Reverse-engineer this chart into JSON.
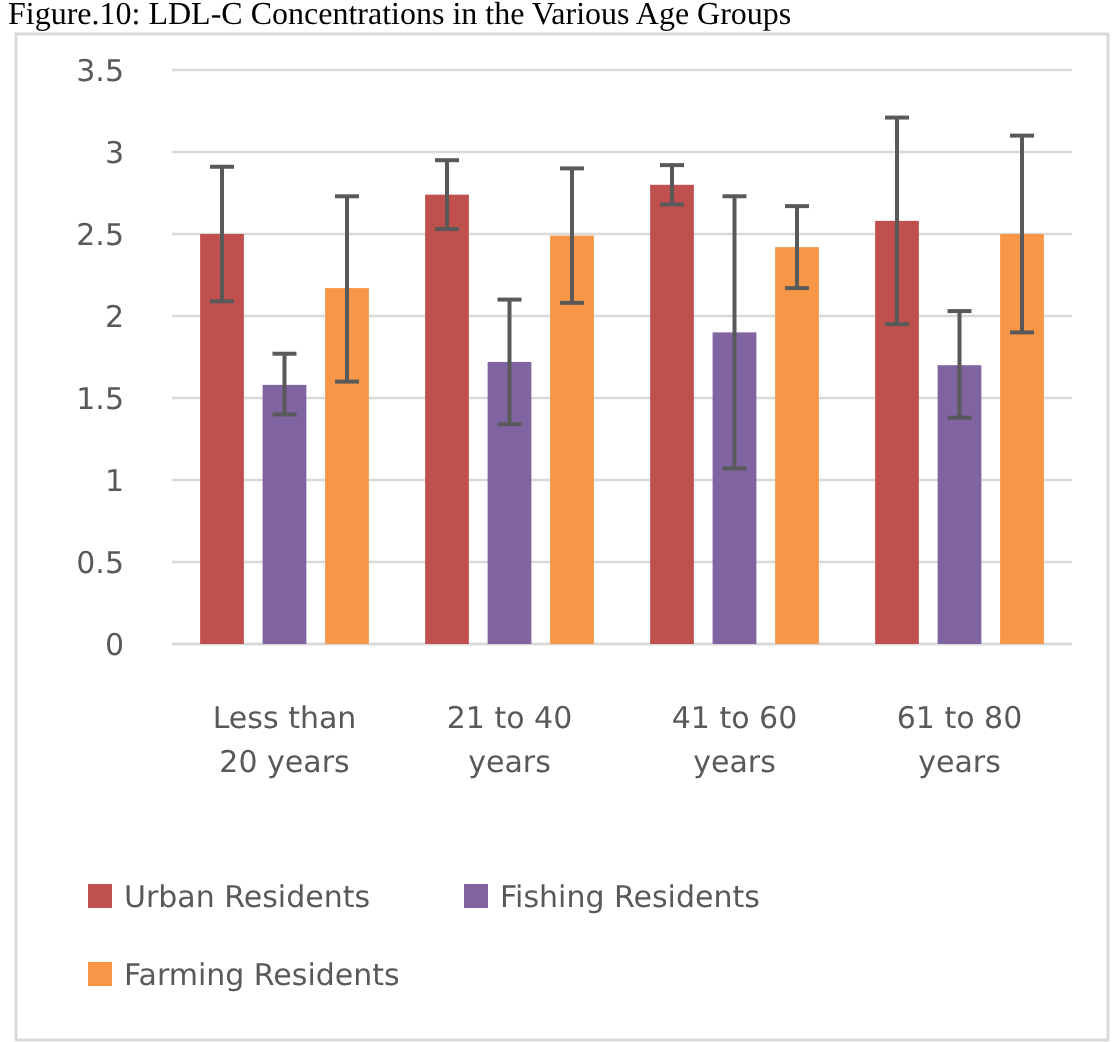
{
  "chart_data": {
    "type": "bar",
    "title": "Figure.10: LDL-C Concentrations in the Various Age Groups",
    "categories": [
      "Less than 20 years",
      "21 to 40 years",
      "41 to 60 years",
      "61 to 80 years"
    ],
    "series": [
      {
        "name": "Urban Residents",
        "color": "#c0504d",
        "values": [
          2.5,
          2.74,
          2.8,
          2.58
        ],
        "errors": [
          [
            2.09,
            2.91
          ],
          [
            2.53,
            2.95
          ],
          [
            2.68,
            2.92
          ],
          [
            1.95,
            3.21
          ]
        ]
      },
      {
        "name": "Fishing Residents",
        "color": "#8064a2",
        "values": [
          1.58,
          1.72,
          1.9,
          1.7
        ],
        "errors": [
          [
            1.4,
            1.77
          ],
          [
            1.34,
            2.1
          ],
          [
            1.07,
            2.73
          ],
          [
            1.38,
            2.03
          ]
        ]
      },
      {
        "name": "Farming Residents",
        "color": "#f79646",
        "values": [
          2.17,
          2.49,
          2.42,
          2.5
        ],
        "errors": [
          [
            1.6,
            2.73
          ],
          [
            2.08,
            2.9
          ],
          [
            2.17,
            2.67
          ],
          [
            1.9,
            3.1
          ]
        ]
      }
    ],
    "ylim": [
      0,
      3.5
    ],
    "yticks": [
      0,
      0.5,
      1,
      1.5,
      2,
      2.5,
      3,
      3.5
    ],
    "grid": "y",
    "legend": "bottom"
  }
}
